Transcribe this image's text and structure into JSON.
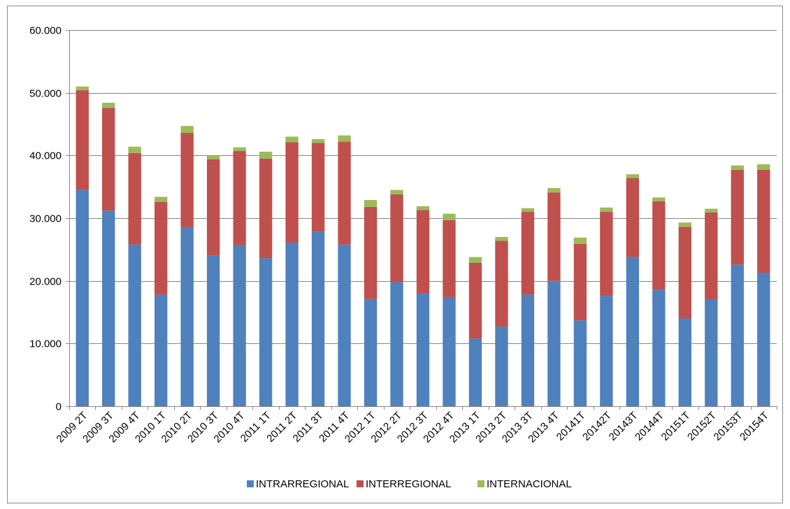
{
  "chart_data": {
    "type": "bar",
    "stacked": true,
    "categories": [
      "2009 2T",
      "2009 3T",
      "2009 4T",
      "2010 1T",
      "2010 2T",
      "2010 3T",
      "2010 4T",
      "2011 1T",
      "2011 2T",
      "2011 3T",
      "2011 4T",
      "2012 1T",
      "2012 2T",
      "2012 3T",
      "2012 4T",
      "2013 1T",
      "2013 2T",
      "2013 3T",
      "2013 4T",
      "20141T",
      "20142T",
      "20143T",
      "20144T",
      "20151T",
      "20152T",
      "20153T",
      "20154T"
    ],
    "series": [
      {
        "name": "INTRARREGIONAL",
        "color": "#4f81bd",
        "values": [
          34500,
          31200,
          25800,
          17800,
          28500,
          24000,
          25700,
          23600,
          26100,
          27800,
          25800,
          17100,
          19800,
          18000,
          17400,
          10800,
          12700,
          17800,
          20000,
          13700,
          17600,
          23800,
          18600,
          14000,
          17000,
          22600,
          21300
        ]
      },
      {
        "name": "INTERREGIONAL",
        "color": "#c0504d",
        "values": [
          15900,
          16400,
          14600,
          14800,
          15100,
          15400,
          15000,
          15900,
          16000,
          14200,
          16400,
          14700,
          14000,
          13300,
          12300,
          12100,
          13700,
          13200,
          14100,
          12200,
          13400,
          12600,
          14100,
          14600,
          13900,
          15100,
          16400
        ]
      },
      {
        "name": "INTERNACIONAL",
        "color": "#9bbb59",
        "values": [
          600,
          800,
          1000,
          800,
          1100,
          600,
          600,
          1100,
          900,
          600,
          1000,
          1100,
          700,
          600,
          1000,
          900,
          600,
          600,
          700,
          1000,
          700,
          600,
          600,
          700,
          600,
          700,
          900
        ]
      }
    ],
    "ylim": [
      0,
      60000
    ],
    "yticks": [
      0,
      10000,
      20000,
      30000,
      40000,
      50000,
      60000
    ],
    "ytick_labels": [
      "0",
      "10.000",
      "20.000",
      "30.000",
      "40.000",
      "50.000",
      "60.000"
    ],
    "grid": true,
    "legend_position": "bottom"
  }
}
